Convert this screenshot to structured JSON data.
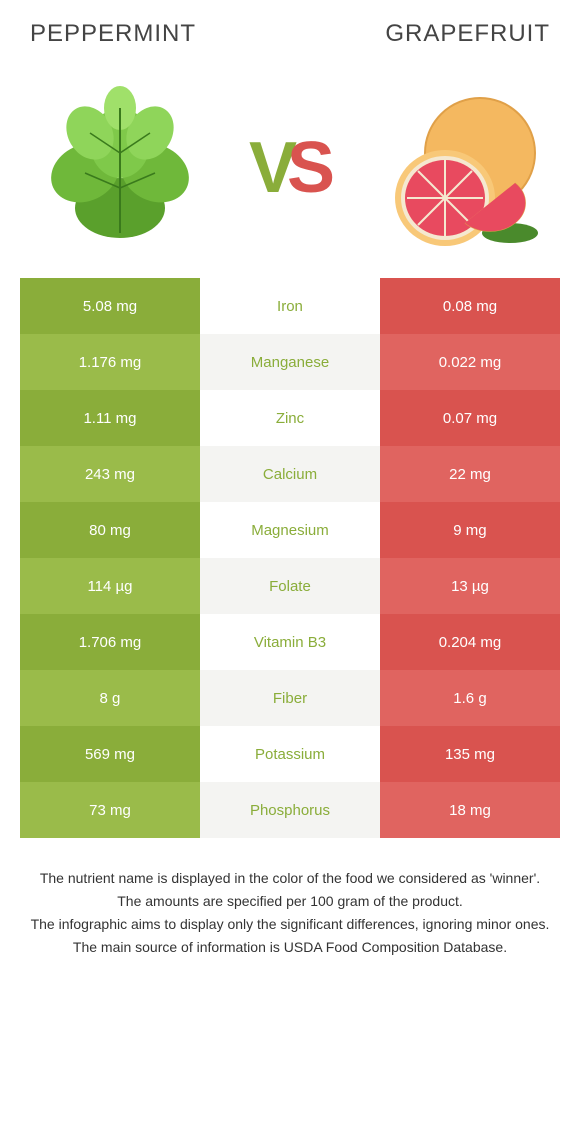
{
  "header": {
    "left_title": "PEPPERMINT",
    "right_title": "GRAPEFRUIT",
    "vs_v": "V",
    "vs_s": "S"
  },
  "colors": {
    "left_bar": "#8aad3a",
    "left_alt": "#9abb4a",
    "right_bar": "#d9534f",
    "right_alt": "#e06460",
    "mid_bg": "#ffffff",
    "mid_alt": "#f4f4f2",
    "mid_text_winner_left": "#8aad3a",
    "mid_text_winner_right": "#d9534f",
    "left_text": "#ffffff",
    "right_text": "#ffffff"
  },
  "rows": [
    {
      "left": "5.08 mg",
      "label": "Iron",
      "right": "0.08 mg",
      "winner": "left"
    },
    {
      "left": "1.176 mg",
      "label": "Manganese",
      "right": "0.022 mg",
      "winner": "left"
    },
    {
      "left": "1.11 mg",
      "label": "Zinc",
      "right": "0.07 mg",
      "winner": "left"
    },
    {
      "left": "243 mg",
      "label": "Calcium",
      "right": "22 mg",
      "winner": "left"
    },
    {
      "left": "80 mg",
      "label": "Magnesium",
      "right": "9 mg",
      "winner": "left"
    },
    {
      "left": "114 µg",
      "label": "Folate",
      "right": "13 µg",
      "winner": "left"
    },
    {
      "left": "1.706 mg",
      "label": "Vitamin B3",
      "right": "0.204 mg",
      "winner": "left"
    },
    {
      "left": "8 g",
      "label": "Fiber",
      "right": "1.6 g",
      "winner": "left"
    },
    {
      "left": "569 mg",
      "label": "Potassium",
      "right": "135 mg",
      "winner": "left"
    },
    {
      "left": "73 mg",
      "label": "Phosphorus",
      "right": "18 mg",
      "winner": "left"
    }
  ],
  "footer": {
    "line1": "The nutrient name is displayed in the color of the food we considered as 'winner'.",
    "line2": "The amounts are specified per 100 gram of the product.",
    "line3": "The infographic aims to display only the significant differences, ignoring minor ones.",
    "line4": "The main source of information is USDA Food Composition Database."
  }
}
